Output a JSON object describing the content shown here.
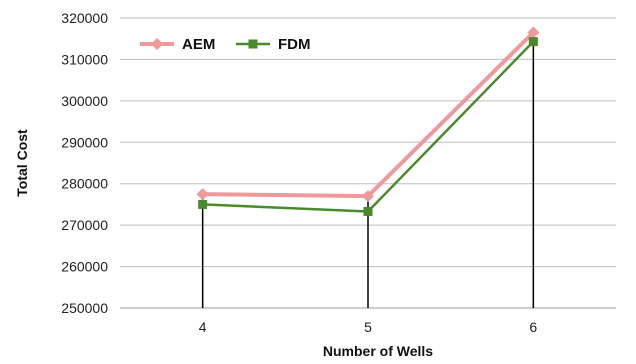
{
  "chart_data": {
    "type": "line",
    "title": "",
    "xlabel": "Number of Wells",
    "ylabel": "Total Cost",
    "categories": [
      "4",
      "5",
      "6"
    ],
    "ylim": [
      250000,
      320000
    ],
    "yticks": [
      250000,
      260000,
      270000,
      280000,
      290000,
      300000,
      310000,
      320000
    ],
    "ytick_labels": [
      "250000",
      "260000",
      "270000",
      "280000",
      "290000",
      "300000",
      "310000",
      "320000"
    ],
    "grid": true,
    "legend_position": "top-left",
    "series": [
      {
        "name": "AEM",
        "values": [
          277500,
          277000,
          316500
        ],
        "color": "#f0999b",
        "marker": "diamond"
      },
      {
        "name": "FDM",
        "values": [
          275000,
          273300,
          314300
        ],
        "color": "#4a8a2e",
        "marker": "square"
      }
    ],
    "drop_lines": {
      "color": "#000000",
      "to": "xaxis"
    }
  }
}
